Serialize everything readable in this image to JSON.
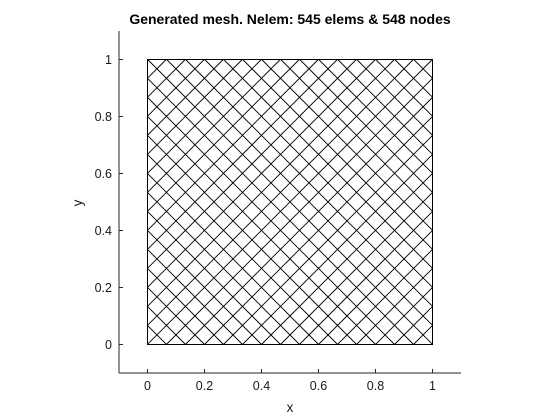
{
  "chart_data": {
    "type": "mesh",
    "title": "Generated mesh. Nelem: 545 elems & 548 nodes",
    "xlabel": "x",
    "ylabel": "y",
    "xlim": [
      -0.1,
      1.1
    ],
    "ylim": [
      -0.1,
      1.1
    ],
    "xticks": [
      "0",
      "0.2",
      "0.4",
      "0.6",
      "0.8",
      "1"
    ],
    "yticks": [
      "0",
      "0.2",
      "0.4",
      "0.6",
      "0.8",
      "1"
    ],
    "domain": {
      "xmin": 0,
      "xmax": 1,
      "ymin": 0,
      "ymax": 1
    },
    "diagonal_spacing": 0.0667,
    "grid": false,
    "box": false,
    "colors": {
      "mesh": "#000000",
      "axes": "#262626",
      "background": "#ffffff"
    }
  }
}
